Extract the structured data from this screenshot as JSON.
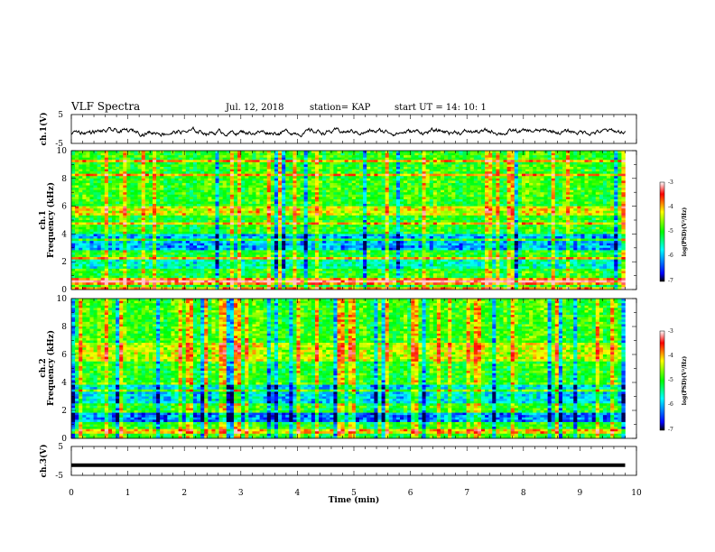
{
  "header": {
    "title": "VLF Spectra",
    "date": "Jul. 12, 2018",
    "station": "station= KAP",
    "start": "start UT = 14: 10: 1"
  },
  "chart_data": [
    {
      "type": "line",
      "panel": "ch1-waveform",
      "ylabel": "ch.1(V)",
      "ylim": [
        -5,
        5
      ],
      "y_ticks": [
        "5",
        "-5"
      ],
      "xlim": [
        0,
        10
      ],
      "note": "noisy waveform varying roughly between -3 and 1 V"
    },
    {
      "type": "heatmap",
      "panel": "ch1-spectrogram",
      "ylabel": "ch.1\nFrequency (kHz)",
      "ylabel_lines": [
        "ch.1",
        "Frequency (kHz)"
      ],
      "ylim": [
        0,
        10
      ],
      "y_ticks": [
        "0",
        "2",
        "4",
        "6",
        "8",
        "10"
      ],
      "xlim": [
        0,
        10
      ],
      "data_end_min": 9.8,
      "colorbar": {
        "label": "log(PSD)(V²/Hz)",
        "range": [
          -7,
          -3
        ],
        "ticks": [
          "-3",
          "-4",
          "-5",
          "-6",
          "-7"
        ]
      }
    },
    {
      "type": "heatmap",
      "panel": "ch2-spectrogram",
      "ylabel": "ch.2\nFrequency (kHz)",
      "ylabel_lines": [
        "ch.2",
        "Frequency (kHz)"
      ],
      "ylim": [
        0,
        10
      ],
      "y_ticks": [
        "0",
        "2",
        "4",
        "6",
        "8",
        "10"
      ],
      "xlim": [
        0,
        10
      ],
      "data_end_min": 9.8,
      "colorbar": {
        "label": "log(PSD)(V²/Hz)",
        "range": [
          -7,
          -3
        ],
        "ticks": [
          "-3",
          "-4",
          "-5",
          "-6",
          "-7"
        ]
      }
    },
    {
      "type": "line",
      "panel": "ch3-waveform",
      "ylabel": "ch.3(V)",
      "ylim": [
        -5,
        5
      ],
      "y_ticks": [
        "5",
        "-5"
      ],
      "xlim": [
        0,
        10
      ],
      "constant_value": -1.5
    }
  ],
  "x_axis": {
    "label": "Time (min)",
    "ticks": [
      "0",
      "1",
      "2",
      "3",
      "4",
      "5",
      "6",
      "7",
      "8",
      "9",
      "10"
    ]
  },
  "colors": {
    "scale": [
      "#000000",
      "#0000ff",
      "#00ffff",
      "#00ff00",
      "#ffff00",
      "#ff0000",
      "#ffffff"
    ]
  }
}
